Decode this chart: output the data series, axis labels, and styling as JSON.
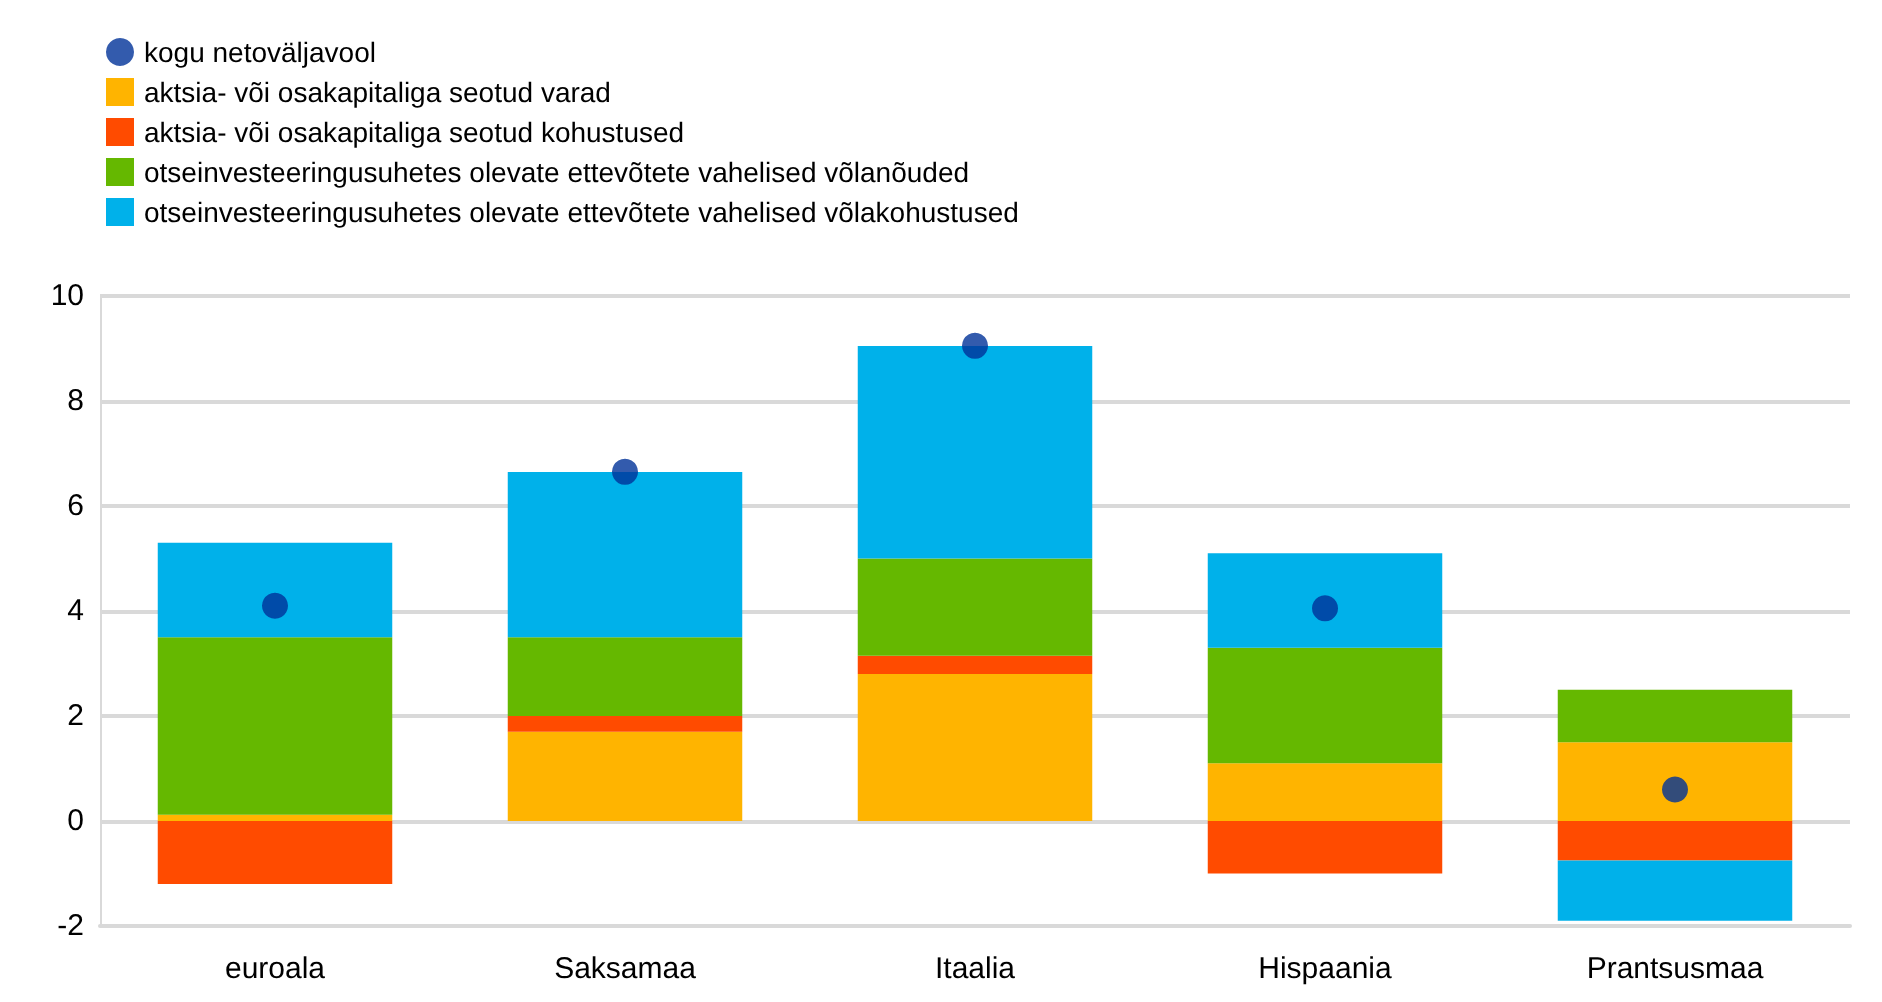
{
  "chart_data": {
    "type": "bar",
    "stacked": true,
    "categories": [
      "euroala",
      "Saksamaa",
      "Itaalia",
      "Hispaania",
      "Prantsusmaa"
    ],
    "series": [
      {
        "name": "kogu netoväljavool",
        "type": "scatter",
        "color": "#003299",
        "marker": "circle",
        "values": [
          4.1,
          6.65,
          9.05,
          4.05,
          0.6
        ]
      },
      {
        "name": "aktsia- või osakapitaliga seotud varad",
        "color": "#ffb400",
        "values": [
          0.12,
          1.7,
          2.8,
          1.1,
          1.5
        ]
      },
      {
        "name": "aktsia- või osakapitaliga seotud kohustused",
        "color": "#ff4b00",
        "values": [
          -1.2,
          0.3,
          0.35,
          -1.0,
          -0.75
        ]
      },
      {
        "name": "otseinvesteeringusuhetes olevate ettevõtete vahelised võlanõuded",
        "color": "#65b800",
        "values": [
          3.38,
          1.5,
          1.85,
          2.2,
          1.0
        ]
      },
      {
        "name": "otseinvesteeringusuhetes olevate ettevõtete vahelised võlakohustused",
        "color": "#00b1ea",
        "values": [
          1.8,
          3.15,
          4.05,
          1.8,
          -1.15
        ]
      }
    ],
    "ylim": [
      -2,
      10
    ],
    "yticks": [
      -2,
      0,
      2,
      4,
      6,
      8,
      10
    ],
    "grid": "y",
    "legend": "top left"
  }
}
